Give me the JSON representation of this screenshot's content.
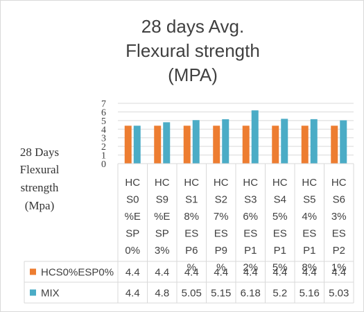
{
  "chart_data": {
    "type": "bar",
    "title_lines": [
      "28 days Avg.",
      "Flexural strength",
      "(MPA)"
    ],
    "ylabel_lines": [
      "28 Days",
      "Flexural",
      "strength",
      "(Mpa)"
    ],
    "ylim": [
      0,
      7
    ],
    "yticks": [
      "0",
      "1",
      "2",
      "3",
      "4",
      "5",
      "6",
      "7"
    ],
    "categories": [
      [
        "HC",
        "S0",
        "%E",
        "SP",
        "0%"
      ],
      [
        "HC",
        "S9",
        "%E",
        "SP",
        "3%"
      ],
      [
        "HC",
        "S1",
        "8%",
        "ES",
        "P6",
        "%"
      ],
      [
        "HC",
        "S2",
        "7%",
        "ES",
        "P9",
        "%"
      ],
      [
        "HC",
        "S3",
        "6%",
        "ES",
        "P1",
        "2%"
      ],
      [
        "HC",
        "S4",
        "5%",
        "ES",
        "P1",
        "5%"
      ],
      [
        "HC",
        "S5",
        "4%",
        "ES",
        "P1",
        "8%"
      ],
      [
        "HC",
        "S6",
        "3%",
        "ES",
        "P2",
        "1%"
      ]
    ],
    "series": [
      {
        "name": "HCS0%ESP0%",
        "color": "#ED7D31",
        "values": [
          4.4,
          4.4,
          4.4,
          4.4,
          4.4,
          4.4,
          4.4,
          4.4
        ],
        "labels": [
          "4.4",
          "4.4",
          "4.4",
          "4.4",
          "4.4",
          "4.4",
          "4.4",
          "4.4"
        ]
      },
      {
        "name": "MIX",
        "color": "#4BACC6",
        "values": [
          4.4,
          4.8,
          5.05,
          5.15,
          6.18,
          5.2,
          5.16,
          5.03
        ],
        "labels": [
          "4.4",
          "4.8",
          "5.05",
          "5.15",
          "6.18",
          "5.2",
          "5.16",
          "5.03"
        ]
      }
    ]
  }
}
